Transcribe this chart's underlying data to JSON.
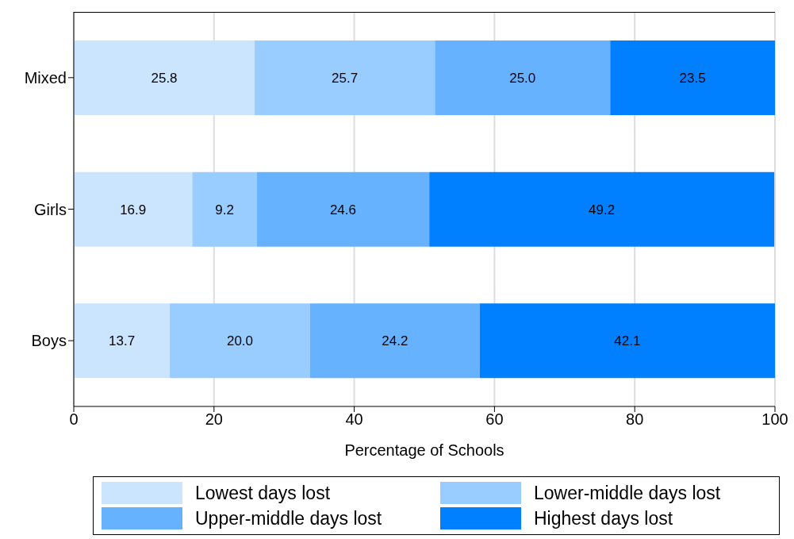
{
  "chart_data": {
    "type": "bar",
    "orientation": "horizontal",
    "stacked": true,
    "categories": [
      "Mixed",
      "Girls",
      "Boys"
    ],
    "series": [
      {
        "name": "Lowest days lost",
        "color": "#cce5ff",
        "values": [
          25.8,
          16.9,
          13.7
        ],
        "value_labels": [
          "25.8",
          "16.9",
          "13.7"
        ]
      },
      {
        "name": "Lower-middle days lost",
        "color": "#99ccff",
        "values": [
          25.7,
          9.2,
          20.0
        ],
        "value_labels": [
          "25.7",
          "9.2",
          "20.0"
        ]
      },
      {
        "name": "Upper-middle days lost",
        "color": "#66b2ff",
        "values": [
          25.0,
          24.6,
          24.2
        ],
        "value_labels": [
          "25.0",
          "24.6",
          "24.2"
        ]
      },
      {
        "name": "Highest days lost",
        "color": "#007fff",
        "values": [
          23.5,
          49.2,
          42.1
        ],
        "value_labels": [
          "23.5",
          "49.2",
          "42.1"
        ]
      }
    ],
    "xlabel": "Percentage of Schools",
    "xlim": [
      0,
      100
    ],
    "xticks": [
      0,
      20,
      40,
      60,
      80,
      100
    ],
    "grid": "x",
    "legend": "bottom"
  }
}
